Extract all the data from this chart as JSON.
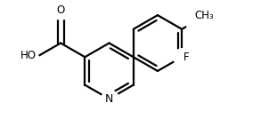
{
  "bg_color": "#ffffff",
  "bond_color": "#000000",
  "text_color": "#000000",
  "line_width": 1.6,
  "font_size": 8.5,
  "figsize": [
    3.02,
    1.52
  ],
  "dpi": 100,
  "N_label": "N",
  "F_label": "F",
  "CH3_label": "CH₃",
  "O_label": "O",
  "HO_label": "HO"
}
